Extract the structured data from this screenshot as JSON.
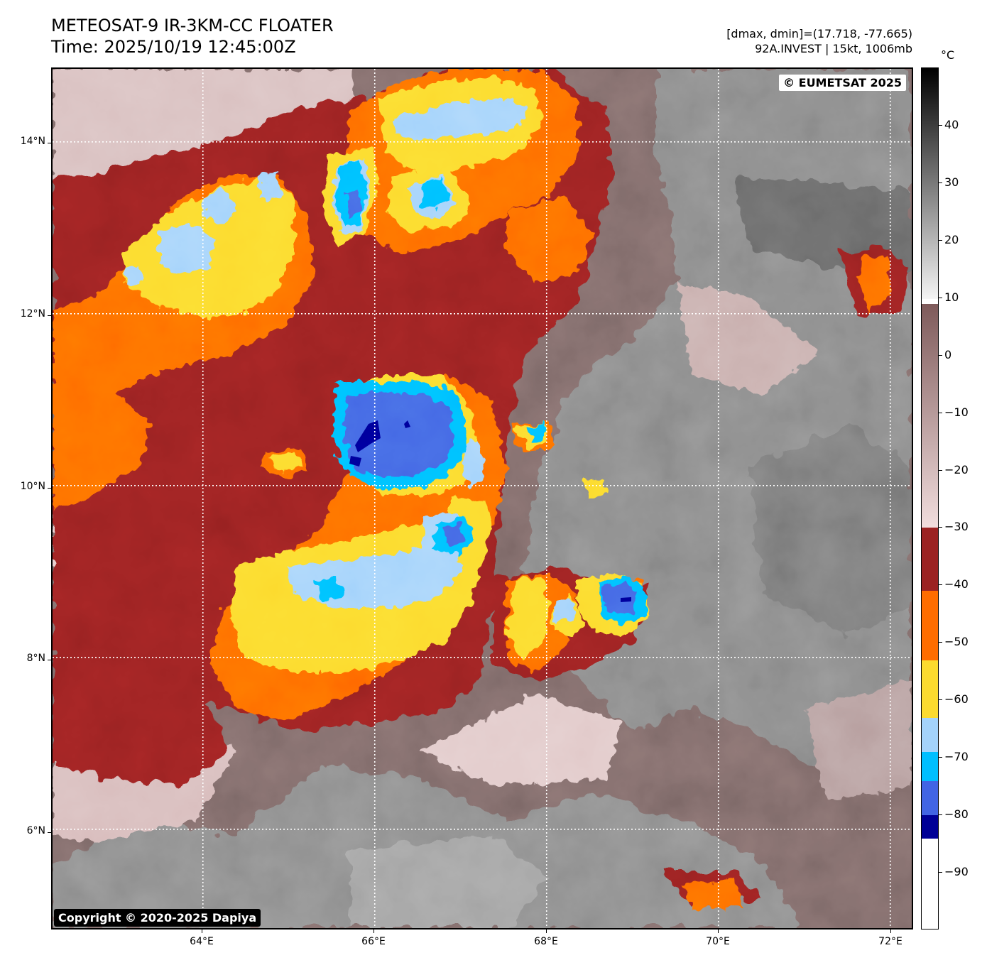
{
  "header": {
    "title_line1": "METEOSAT-9 IR-3KM-CC FLOATER",
    "title_line2": "Time: 2025/10/19 12:45:00Z",
    "info_line1": "[dmax, dmin]=(17.718, -77.665)",
    "info_line2": "92A.INVEST | 15kt, 1006mb"
  },
  "map": {
    "credit_top": "© EUMETSAT 2025",
    "credit_bottom": "Copyright © 2020-2025 Dapiya",
    "lat_labels": [
      "14°N",
      "12°N",
      "10°N",
      "8°N",
      "6°N"
    ],
    "lon_labels": [
      "64°E",
      "66°E",
      "68°E",
      "70°E",
      "72°E"
    ],
    "lat_values": [
      14,
      12,
      10,
      8,
      6
    ],
    "lon_values": [
      64,
      66,
      68,
      70,
      72
    ],
    "lat_range": [
      4.85,
      14.85
    ],
    "lon_range": [
      62.25,
      72.25
    ],
    "gridlines": "dotted white"
  },
  "colorbar": {
    "unit": "°C",
    "labels": [
      "40",
      "30",
      "20",
      "10",
      "0",
      "−10",
      "−20",
      "−30",
      "−40",
      "−50",
      "−60",
      "−70",
      "−80",
      "−90"
    ],
    "label_values": [
      40,
      30,
      20,
      10,
      0,
      -10,
      -20,
      -30,
      -40,
      -50,
      -60,
      -70,
      -80,
      -90
    ],
    "range": [
      -100,
      50
    ],
    "bands": [
      {
        "from": 10,
        "to": 50,
        "colors": [
          "#f4f4f4",
          "#000000"
        ]
      },
      {
        "from": -30,
        "to": 9,
        "colors": [
          "#f2dede",
          "#7e5a5a"
        ]
      },
      {
        "from": -41,
        "to": -30,
        "colors": [
          "#9b2222"
        ]
      },
      {
        "from": -53,
        "to": -41,
        "colors": [
          "#ff6d00"
        ]
      },
      {
        "from": -63,
        "to": -53,
        "colors": [
          "#fcdb2f"
        ]
      },
      {
        "from": -69,
        "to": -63,
        "colors": [
          "#a4d3fb"
        ]
      },
      {
        "from": -74,
        "to": -69,
        "colors": [
          "#00bfff"
        ]
      },
      {
        "from": -80,
        "to": -74,
        "colors": [
          "#4265e4"
        ]
      },
      {
        "from": -84,
        "to": -80,
        "colors": [
          "#000096"
        ]
      },
      {
        "from": -100,
        "to": -84,
        "colors": [
          "#ffffff"
        ]
      }
    ]
  }
}
